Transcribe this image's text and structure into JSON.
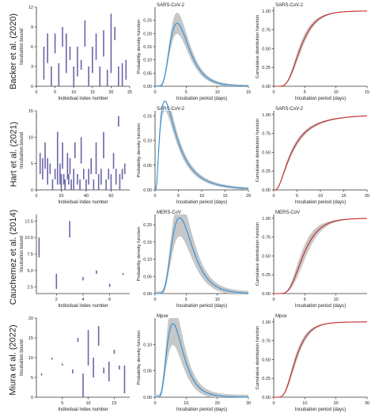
{
  "figure": {
    "x_label_intervals": "Individual index number",
    "y_label_intervals": "Incubation bound",
    "x_label_period": "Incubation period (days)",
    "y_label_pdf": "Probability density function",
    "y_label_cdf": "Cumulative distribution function"
  },
  "colors": {
    "interval": "#6b66a8",
    "pdf_line": "#2e8fd6",
    "cdf_line": "#c62828",
    "band": "#c7c7c7",
    "axis": "#333333"
  },
  "rows": [
    {
      "study": "Backer et al. (2020)",
      "virus": "SARS-CoV-2"
    },
    {
      "study": "Hart et al. (2021)",
      "virus": "SARS-CoV-2"
    },
    {
      "study": "Cauchemez et al. (2014)",
      "virus": "MERS-CoV"
    },
    {
      "study": "Miura et al. (2022)",
      "virus": "Mpox"
    }
  ],
  "chart_data": [
    {
      "id": "backer-intervals",
      "type": "interval",
      "xlim": [
        0,
        25
      ],
      "ylim": [
        0,
        12
      ],
      "xticks": [
        0,
        5,
        10,
        15,
        20,
        25
      ],
      "yticks": [
        0,
        3,
        6,
        9,
        12
      ],
      "intervals": [
        [
          2,
          1,
          6
        ],
        [
          3,
          3.5,
          8
        ],
        [
          4,
          0,
          3
        ],
        [
          5,
          5,
          8
        ],
        [
          6,
          0,
          3.5
        ],
        [
          7,
          6,
          9
        ],
        [
          8,
          2,
          8
        ],
        [
          9,
          4,
          6
        ],
        [
          10,
          0,
          3
        ],
        [
          11,
          1.5,
          6
        ],
        [
          12,
          2.5,
          4
        ],
        [
          13,
          6,
          10
        ],
        [
          14,
          0,
          3
        ],
        [
          15,
          2,
          6
        ],
        [
          16,
          4,
          8
        ],
        [
          17,
          0,
          3
        ],
        [
          18,
          4.5,
          8.5
        ],
        [
          19,
          0,
          2.5
        ],
        [
          20,
          2,
          11
        ],
        [
          21,
          7,
          9
        ],
        [
          22,
          0,
          3
        ],
        [
          23,
          0,
          3.5
        ],
        [
          24,
          1,
          4
        ]
      ]
    },
    {
      "id": "backer-pdf",
      "type": "line",
      "dist": "lognormal",
      "mu": 1.45,
      "sigma": 0.43,
      "scale": 1.0,
      "band": 0.03,
      "xlim": [
        0,
        15
      ],
      "ylim": [
        0,
        0.3
      ],
      "xticks": [
        0,
        5,
        10,
        15
      ],
      "yticks": [
        0.0,
        0.05,
        0.1,
        0.15,
        0.2,
        0.25
      ],
      "ytick_decimals": 2,
      "virus_label": "SARS-CoV-2"
    },
    {
      "id": "backer-cdf",
      "type": "line",
      "dist": "lognormal-cdf",
      "mu": 1.45,
      "sigma": 0.43,
      "band": 0.06,
      "xlim": [
        0,
        15
      ],
      "ylim": [
        0,
        1.05
      ],
      "xticks": [
        0,
        5,
        10,
        15
      ],
      "yticks": [
        0.0,
        0.25,
        0.5,
        0.75,
        1.0
      ],
      "ytick_decimals": 2,
      "virus_label": "SARS-CoV-2"
    },
    {
      "id": "hart-intervals",
      "type": "interval",
      "xlim": [
        0,
        75
      ],
      "ylim": [
        0,
        15
      ],
      "xticks": [
        0,
        20,
        40,
        60
      ],
      "yticks": [
        0,
        5,
        10,
        15
      ],
      "intervals": [
        [
          3,
          3,
          7
        ],
        [
          5,
          2,
          6
        ],
        [
          7,
          4,
          9
        ],
        [
          9,
          1,
          6
        ],
        [
          11,
          3,
          5
        ],
        [
          13,
          0,
          2
        ],
        [
          15,
          2,
          4
        ],
        [
          17,
          1,
          11
        ],
        [
          19,
          1,
          5
        ],
        [
          20,
          0,
          3
        ],
        [
          21,
          4,
          9
        ],
        [
          22,
          1,
          3
        ],
        [
          23,
          0,
          2
        ],
        [
          25,
          2,
          7
        ],
        [
          26,
          1,
          3
        ],
        [
          27,
          3,
          6
        ],
        [
          28,
          0,
          2
        ],
        [
          30,
          0,
          4
        ],
        [
          31,
          6,
          9
        ],
        [
          33,
          1,
          3
        ],
        [
          35,
          0,
          2
        ],
        [
          36,
          5,
          10
        ],
        [
          38,
          2,
          4
        ],
        [
          40,
          0,
          2
        ],
        [
          42,
          1,
          4
        ],
        [
          44,
          3,
          6
        ],
        [
          46,
          0,
          2
        ],
        [
          48,
          3,
          9
        ],
        [
          50,
          0,
          3
        ],
        [
          52,
          1,
          4
        ],
        [
          54,
          6,
          11
        ],
        [
          56,
          0,
          2
        ],
        [
          58,
          2,
          4
        ],
        [
          60,
          0,
          3
        ],
        [
          62,
          4,
          7
        ],
        [
          64,
          1,
          4
        ],
        [
          66,
          12,
          14
        ],
        [
          67,
          0,
          3
        ],
        [
          69,
          2,
          4
        ],
        [
          71,
          3,
          5
        ]
      ]
    },
    {
      "id": "hart-pdf",
      "type": "line",
      "dist": "lognormal",
      "mu": 1.35,
      "sigma": 0.78,
      "scale": 1.0,
      "band": 0.015,
      "xlim": [
        0,
        20
      ],
      "ylim": [
        0,
        0.16
      ],
      "xticks": [
        0,
        5,
        10,
        15,
        20
      ],
      "yticks": [
        0.0,
        0.05,
        0.1,
        0.15
      ],
      "ytick_decimals": 2,
      "virus_label": "SARS-CoV-2"
    },
    {
      "id": "hart-cdf",
      "type": "line",
      "dist": "lognormal-cdf",
      "mu": 1.35,
      "sigma": 0.78,
      "band": 0.04,
      "xlim": [
        0,
        20
      ],
      "ylim": [
        0,
        1.05
      ],
      "xticks": [
        0,
        5,
        10,
        15,
        20
      ],
      "yticks": [
        0.0,
        0.25,
        0.5,
        0.75,
        1.0
      ],
      "ytick_decimals": 2,
      "virus_label": "SARS-CoV-2"
    },
    {
      "id": "cauchemez-intervals",
      "type": "interval",
      "xlim": [
        0.5,
        7.5
      ],
      "ylim": [
        1.5,
        13.5
      ],
      "xticks": [
        2,
        4,
        6
      ],
      "yticks": [
        2.5,
        5.0,
        7.5,
        10.0,
        12.5
      ],
      "ytick_decimals": 1,
      "intervals": [
        [
          0.7,
          7,
          10
        ],
        [
          2,
          2.2,
          4.5
        ],
        [
          3,
          10,
          12.5
        ],
        [
          4,
          3.5,
          4
        ],
        [
          5,
          4.5,
          5
        ],
        [
          6,
          2.5,
          3
        ],
        [
          7,
          4.3,
          4.6
        ]
      ]
    },
    {
      "id": "cauchemez-pdf",
      "type": "line",
      "dist": "lognormal",
      "mu": 1.55,
      "sigma": 0.42,
      "scale": 1.0,
      "band": 0.04,
      "xlim": [
        0,
        15
      ],
      "ylim": [
        0,
        0.23
      ],
      "xticks": [
        0,
        5,
        10
      ],
      "yticks": [
        0.0,
        0.05,
        0.1,
        0.15,
        0.2
      ],
      "ytick_decimals": 2,
      "virus_label": "MERS-CoV"
    },
    {
      "id": "cauchemez-cdf",
      "type": "line",
      "dist": "lognormal-cdf",
      "mu": 1.55,
      "sigma": 0.42,
      "band": 0.1,
      "xlim": [
        0,
        15
      ],
      "ylim": [
        0,
        1.05
      ],
      "xticks": [
        0,
        5,
        10
      ],
      "yticks": [
        0.0,
        0.25,
        0.5,
        0.75,
        1.0
      ],
      "ytick_decimals": 2,
      "virus_label": "MERS-CoV"
    },
    {
      "id": "miura-intervals",
      "type": "interval",
      "xlim": [
        0,
        18
      ],
      "ylim": [
        0,
        20
      ],
      "xticks": [
        5,
        10,
        15
      ],
      "yticks": [
        0,
        5,
        10,
        15,
        20
      ],
      "ytick_decimals": 0,
      "intervals": [
        [
          1,
          5.5,
          6
        ],
        [
          3,
          9.5,
          10
        ],
        [
          5,
          8,
          8.5
        ],
        [
          7,
          6,
          7
        ],
        [
          8,
          14,
          15
        ],
        [
          9,
          0,
          6
        ],
        [
          10,
          8,
          17
        ],
        [
          11,
          5,
          10
        ],
        [
          12,
          13,
          18
        ],
        [
          13,
          6,
          7.5
        ],
        [
          14,
          4,
          9
        ],
        [
          15,
          11,
          12
        ],
        [
          16,
          7,
          8
        ],
        [
          17,
          1,
          8
        ]
      ]
    },
    {
      "id": "miura-pdf",
      "type": "line",
      "dist": "lognormal",
      "mu": 1.95,
      "sigma": 0.45,
      "scale": 1.0,
      "band": 0.03,
      "xlim": [
        0,
        30
      ],
      "ylim": [
        0,
        0.15
      ],
      "xticks": [
        0,
        10,
        20,
        30
      ],
      "yticks": [
        0.0,
        0.05,
        0.1
      ],
      "ytick_decimals": 2,
      "virus_label": "Mpox"
    },
    {
      "id": "miura-cdf",
      "type": "line",
      "dist": "lognormal-cdf",
      "mu": 1.95,
      "sigma": 0.45,
      "band": 0.06,
      "xlim": [
        0,
        30
      ],
      "ylim": [
        0,
        1.05
      ],
      "xticks": [
        0,
        10,
        20,
        30
      ],
      "yticks": [
        0.0,
        0.25,
        0.5,
        0.75,
        1.0
      ],
      "ytick_decimals": 2,
      "virus_label": "Mpox"
    }
  ]
}
